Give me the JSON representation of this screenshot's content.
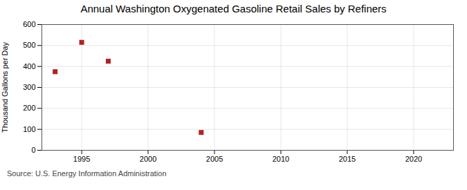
{
  "chart_data": {
    "type": "scatter",
    "title": "Annual Washington Oxygenated Gasoline Retail Sales by Refiners",
    "ylabel": "Thousand Gallons per Day",
    "source": "Source: U.S. Energy Information Administration",
    "x": [
      1993,
      1995,
      1997,
      2004
    ],
    "values": [
      375,
      515,
      425,
      85
    ],
    "color": "#b22222",
    "marker": "square",
    "xlim": [
      1992,
      2023
    ],
    "ylim": [
      0,
      600
    ],
    "xticks": [
      1995,
      2000,
      2005,
      2010,
      2015,
      2020
    ],
    "yticks": [
      0,
      100,
      200,
      300,
      400,
      500,
      600
    ],
    "grid": true
  }
}
